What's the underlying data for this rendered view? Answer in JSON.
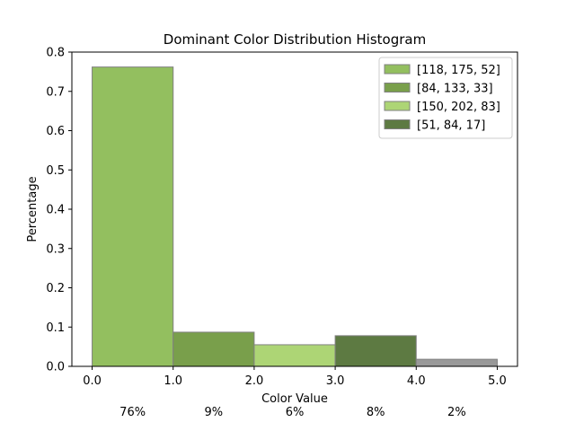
{
  "chart_data": {
    "type": "bar",
    "title": "Dominant Color Distribution Histogram",
    "xlabel": "Color Value",
    "ylabel": "Percentage",
    "xlim": [
      -0.25,
      5.25
    ],
    "ylim": [
      0,
      0.8
    ],
    "x_ticks": [
      "0.0",
      "1.0",
      "2.0",
      "3.0",
      "4.0",
      "5.0"
    ],
    "y_ticks": [
      "0.0",
      "0.1",
      "0.2",
      "0.3",
      "0.4",
      "0.5",
      "0.6",
      "0.7",
      "0.8"
    ],
    "grid": false,
    "legend_position": "top-right",
    "bars": [
      {
        "x0": 0,
        "x1": 1,
        "value": 0.762,
        "color": "#93bf5f",
        "legend": "[118, 175, 52]",
        "percent_label": "76%"
      },
      {
        "x0": 1,
        "x1": 2,
        "value": 0.087,
        "color": "#799f4b",
        "legend": "[84, 133, 33]",
        "percent_label": "9%"
      },
      {
        "x0": 2,
        "x1": 3,
        "value": 0.055,
        "color": "#add575",
        "legend": "[150, 202, 83]",
        "percent_label": "6%"
      },
      {
        "x0": 3,
        "x1": 4,
        "value": 0.078,
        "color": "#5d7a42",
        "legend": "[51, 84, 17]",
        "percent_label": "8%"
      },
      {
        "x0": 4,
        "x1": 5,
        "value": 0.018,
        "color": "#999999",
        "legend": "",
        "percent_label": "2%"
      }
    ],
    "bar_edge_color": "#808080"
  }
}
